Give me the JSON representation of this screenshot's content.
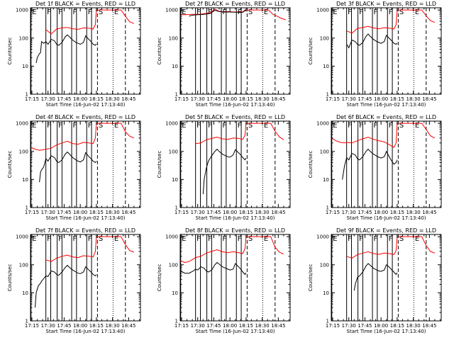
{
  "chart_data": {
    "type": "line",
    "shared": {
      "x_label": "Start Time (16-Jun-02 17:13:40)",
      "y_label": "Counts/sec",
      "x_ticks": [
        "17:15",
        "17:30",
        "17:45",
        "18:00",
        "18:15",
        "18:30",
        "18:45"
      ],
      "x_tick_minutes": [
        15,
        30,
        45,
        60,
        75,
        90,
        105
      ],
      "y_ticks": [
        "1",
        "10",
        "100",
        "1000"
      ],
      "y_tick_values": [
        1,
        10,
        100,
        1000
      ],
      "xlim_minutes": [
        13.7,
        116
      ],
      "ylim": [
        1,
        1200
      ],
      "y_scale": "log",
      "series_legend": {
        "events": "BLACK",
        "lld": "RED"
      },
      "series_colors": {
        "events": "#000000",
        "lld": "#ff0000"
      },
      "markers": [
        {
          "label": "E",
          "minute": 14.2,
          "style": "solid"
        },
        {
          "label": "F",
          "minute": 28.0,
          "style": "solid"
        },
        {
          "label": "",
          "minute": 32.5,
          "style": "solid"
        },
        {
          "label": "F",
          "minute": 38.5,
          "style": "solid"
        },
        {
          "label": "",
          "minute": 43.0,
          "style": "solid"
        },
        {
          "label": "F",
          "minute": 52.0,
          "style": "solid"
        },
        {
          "label": "",
          "minute": 56.5,
          "style": "solid"
        },
        {
          "label": "F",
          "minute": 66.0,
          "style": "solid"
        },
        {
          "label": "",
          "minute": 70.5,
          "style": "solid"
        },
        {
          "label": "S",
          "minute": 76.0,
          "style": "dashed"
        },
        {
          "label": "E",
          "minute": 90.5,
          "style": "dotted"
        },
        {
          "label": "",
          "minute": 102.0,
          "style": "dashed"
        }
      ]
    },
    "panels": [
      {
        "title": "Det 1f BLACK = Events, RED = LLD",
        "lld": {
          "minutes": [
            28,
            33,
            38,
            43,
            48,
            53,
            58,
            63,
            68,
            72,
            74,
            75,
            88,
            93,
            98,
            102,
            106,
            110
          ],
          "values": [
            200,
            140,
            210,
            230,
            240,
            215,
            205,
            230,
            225,
            210,
            300,
            1000,
            1000,
            1000,
            1000,
            600,
            380,
            330
          ]
        },
        "events": {
          "minutes": [
            19,
            20,
            22,
            23,
            24,
            26,
            28,
            30,
            33,
            36,
            38,
            40,
            43,
            46,
            48,
            50,
            53,
            56,
            58,
            60,
            63,
            65,
            68,
            70,
            72,
            74,
            75
          ],
          "values": [
            13,
            20,
            28,
            30,
            75,
            65,
            75,
            60,
            90,
            80,
            60,
            55,
            70,
            110,
            130,
            110,
            85,
            70,
            65,
            60,
            70,
            120,
            90,
            75,
            60,
            55,
            62
          ]
        }
      },
      {
        "title": "Det 2f BLACK = Events, RED = LLD",
        "lld": {
          "minutes": [
            14,
            18,
            22,
            26,
            30,
            34,
            38,
            42,
            46,
            50,
            54,
            58,
            62,
            66,
            70,
            72,
            74,
            76,
            88,
            92,
            96,
            100,
            104,
            108,
            112
          ],
          "values": [
            680,
            680,
            690,
            700,
            700,
            720,
            760,
            800,
            1080,
            900,
            860,
            880,
            860,
            850,
            840,
            860,
            1000,
            1000,
            1000,
            1000,
            1000,
            700,
            600,
            500,
            450
          ]
        },
        "events": {
          "minutes": [
            22,
            24,
            26,
            30,
            34,
            38,
            42,
            46,
            50,
            54,
            58,
            62,
            66,
            70,
            72,
            74,
            75
          ],
          "values": [
            600,
            640,
            660,
            680,
            690,
            720,
            760,
            980,
            880,
            840,
            850,
            840,
            830,
            820,
            830,
            950,
            980
          ]
        }
      },
      {
        "title": "Det 3f BLACK = Events, RED = LLD",
        "lld": {
          "minutes": [
            28,
            33,
            38,
            43,
            48,
            53,
            58,
            63,
            68,
            72,
            74,
            75,
            88,
            93,
            98,
            102,
            106,
            110
          ],
          "values": [
            180,
            150,
            220,
            240,
            260,
            230,
            215,
            235,
            225,
            210,
            300,
            1000,
            1000,
            1000,
            1000,
            620,
            420,
            360
          ]
        },
        "events": {
          "minutes": [
            28,
            30,
            33,
            36,
            38,
            40,
            43,
            46,
            48,
            50,
            53,
            56,
            58,
            60,
            63,
            65,
            68,
            70,
            72,
            74,
            75
          ],
          "values": [
            60,
            45,
            85,
            75,
            60,
            55,
            70,
            115,
            140,
            115,
            90,
            75,
            70,
            65,
            75,
            125,
            95,
            80,
            65,
            60,
            66
          ]
        }
      },
      {
        "title": "Det 4f BLACK = Events, RED = LLD",
        "lld": {
          "minutes": [
            14,
            18,
            22,
            26,
            28,
            33,
            38,
            43,
            48,
            53,
            58,
            63,
            68,
            72,
            74,
            75,
            88,
            93,
            98,
            102,
            106,
            110
          ],
          "values": [
            140,
            120,
            110,
            115,
            120,
            130,
            170,
            200,
            230,
            190,
            180,
            210,
            200,
            190,
            300,
            1000,
            1000,
            1000,
            1000,
            500,
            350,
            300
          ]
        },
        "events": {
          "minutes": [
            22,
            23,
            24,
            26,
            28,
            30,
            33,
            36,
            38,
            40,
            43,
            46,
            48,
            50,
            53,
            56,
            58,
            60,
            63,
            65,
            68,
            70,
            72,
            74,
            75
          ],
          "values": [
            8,
            18,
            22,
            28,
            55,
            45,
            70,
            60,
            45,
            40,
            50,
            80,
            95,
            80,
            60,
            50,
            45,
            42,
            50,
            90,
            65,
            55,
            45,
            40,
            45
          ]
        }
      },
      {
        "title": "Det 5f BLACK = Events, RED = LLD",
        "lld": {
          "minutes": [
            28,
            33,
            38,
            43,
            48,
            53,
            58,
            63,
            68,
            72,
            74,
            75,
            88,
            93,
            98,
            102,
            106,
            110
          ],
          "values": [
            190,
            200,
            260,
            290,
            320,
            280,
            270,
            300,
            290,
            270,
            380,
            1000,
            1000,
            1000,
            1000,
            520,
            330,
            260
          ]
        },
        "events": {
          "minutes": [
            35,
            36,
            38,
            40,
            43,
            46,
            48,
            50,
            53,
            56,
            58,
            60,
            63,
            65,
            68,
            70,
            72,
            74,
            75
          ],
          "values": [
            3,
            10,
            25,
            45,
            70,
            100,
            120,
            100,
            80,
            70,
            65,
            62,
            75,
            115,
            90,
            75,
            60,
            50,
            58
          ]
        }
      },
      {
        "title": "Det 6f BLACK = Events, RED = LLD",
        "lld": {
          "minutes": [
            14,
            18,
            22,
            26,
            28,
            33,
            38,
            43,
            48,
            53,
            58,
            63,
            68,
            72,
            74,
            75,
            88,
            93,
            98,
            102,
            106,
            110
          ],
          "values": [
            300,
            240,
            210,
            200,
            210,
            200,
            240,
            280,
            320,
            270,
            240,
            220,
            170,
            140,
            200,
            1000,
            1000,
            1000,
            1000,
            600,
            360,
            300
          ]
        },
        "events": {
          "minutes": [
            24,
            26,
            28,
            30,
            33,
            36,
            38,
            40,
            43,
            46,
            48,
            50,
            53,
            56,
            58,
            60,
            63,
            65,
            68,
            70,
            72,
            74,
            75
          ],
          "values": [
            10,
            30,
            60,
            50,
            85,
            75,
            55,
            50,
            65,
            100,
            120,
            100,
            80,
            68,
            62,
            58,
            65,
            100,
            60,
            45,
            35,
            40,
            50
          ]
        }
      },
      {
        "title": "Det 7f BLACK = Events, RED = LLD",
        "lld": {
          "minutes": [
            28,
            33,
            38,
            43,
            48,
            53,
            58,
            63,
            68,
            72,
            74,
            75,
            88,
            93,
            98,
            102,
            106,
            110
          ],
          "values": [
            150,
            130,
            170,
            200,
            220,
            190,
            180,
            210,
            200,
            190,
            290,
            1000,
            1000,
            1000,
            1000,
            520,
            320,
            280
          ]
        },
        "events": {
          "minutes": [
            18,
            19,
            21,
            23,
            24,
            26,
            28,
            30,
            33,
            36,
            38,
            40,
            43,
            46,
            48,
            50,
            53,
            56,
            58,
            60,
            63,
            65,
            68,
            70,
            72,
            74,
            75
          ],
          "values": [
            3,
            10,
            18,
            22,
            26,
            32,
            40,
            38,
            60,
            55,
            45,
            42,
            55,
            80,
            95,
            80,
            65,
            55,
            50,
            48,
            55,
            85,
            65,
            55,
            45,
            40,
            45
          ]
        }
      },
      {
        "title": "Det 8f BLACK = Events, RED = LLD",
        "lld": {
          "minutes": [
            14,
            18,
            22,
            26,
            28,
            33,
            38,
            43,
            48,
            53,
            58,
            63,
            68,
            72,
            74,
            75,
            88,
            93,
            98,
            102,
            106,
            110
          ],
          "values": [
            140,
            120,
            130,
            160,
            180,
            200,
            260,
            300,
            340,
            290,
            270,
            290,
            270,
            250,
            380,
            1000,
            1000,
            1000,
            1000,
            420,
            280,
            240
          ]
        },
        "events": {
          "minutes": [
            14,
            18,
            22,
            26,
            28,
            30,
            33,
            36,
            38,
            40,
            43,
            46,
            48,
            50,
            53,
            56,
            58,
            60,
            63,
            65,
            68,
            70,
            72,
            74,
            75
          ],
          "values": [
            60,
            50,
            50,
            60,
            70,
            65,
            85,
            75,
            60,
            55,
            65,
            100,
            120,
            105,
            85,
            75,
            70,
            65,
            70,
            110,
            85,
            70,
            55,
            45,
            52
          ]
        }
      },
      {
        "title": "Det 9f BLACK = Events, RED = LLD",
        "lld": {
          "minutes": [
            28,
            33,
            38,
            43,
            48,
            53,
            58,
            63,
            68,
            72,
            74,
            75,
            88,
            93,
            98,
            102,
            106,
            110
          ],
          "values": [
            200,
            170,
            230,
            260,
            290,
            250,
            235,
            260,
            250,
            230,
            320,
            1000,
            1000,
            1000,
            1000,
            480,
            300,
            260
          ]
        },
        "events": {
          "minutes": [
            35,
            36,
            38,
            40,
            43,
            46,
            48,
            50,
            53,
            56,
            58,
            60,
            63,
            65,
            68,
            70,
            72,
            74,
            75
          ],
          "values": [
            12,
            20,
            35,
            40,
            55,
            90,
            110,
            95,
            75,
            65,
            60,
            58,
            65,
            100,
            80,
            65,
            55,
            45,
            52
          ]
        }
      }
    ]
  }
}
